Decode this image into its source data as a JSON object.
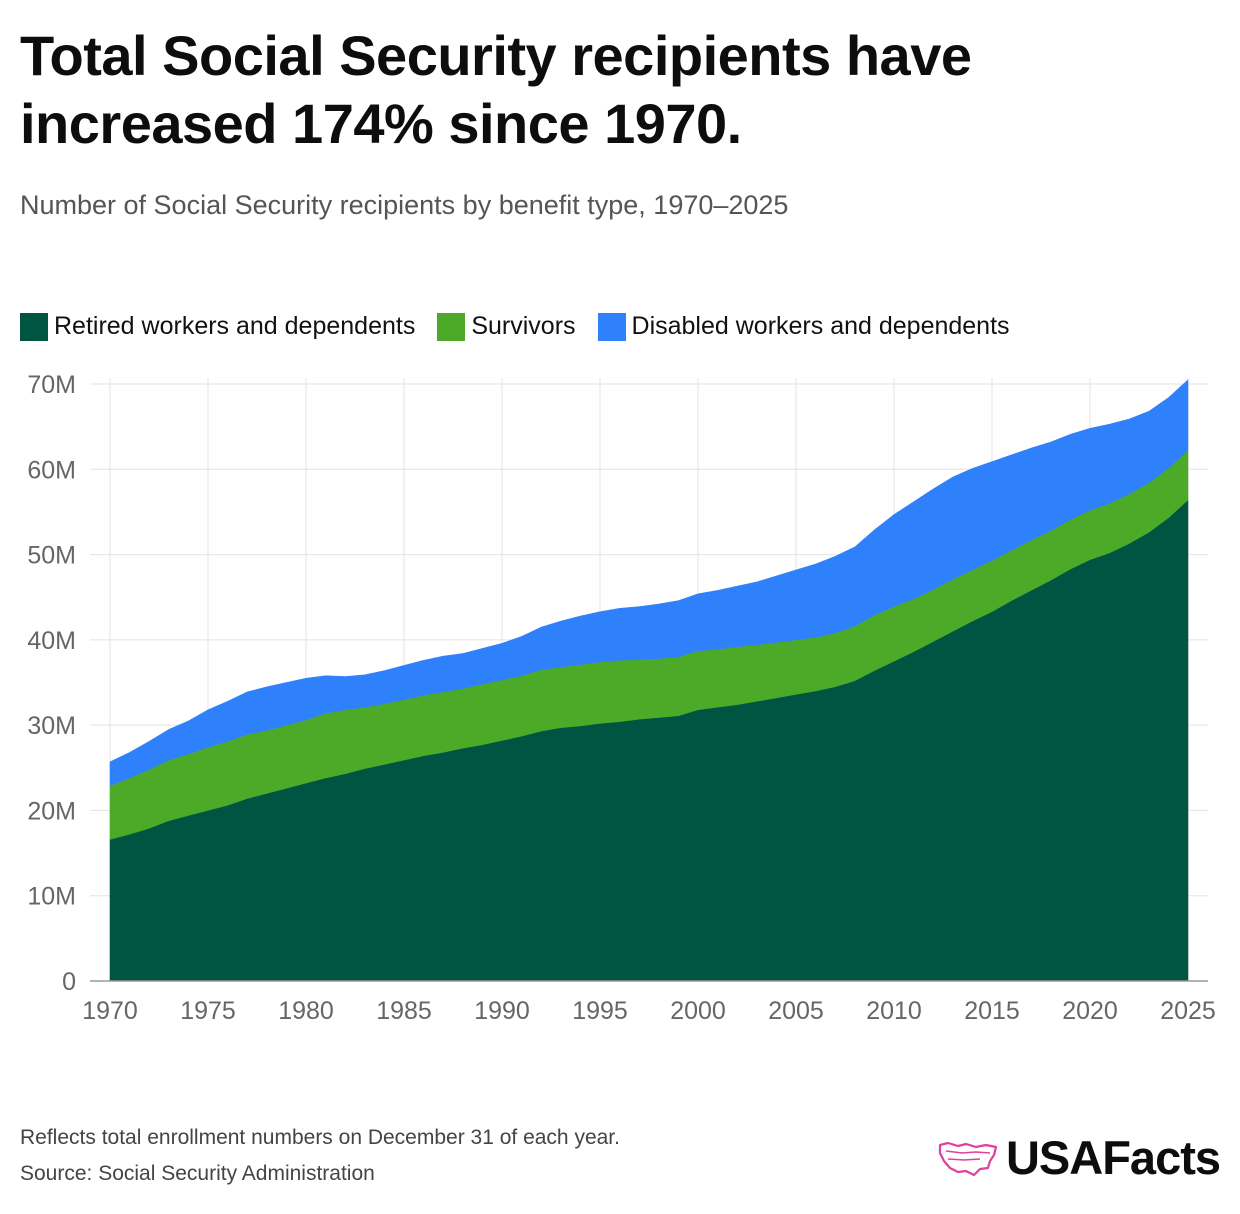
{
  "header": {
    "title": "Total Social Security recipients have increased 174% since 1970.",
    "subtitle": "Number of Social Security recipients by benefit type, 1970–2025"
  },
  "legend": {
    "items": [
      {
        "label": "Retired workers and dependents",
        "color": "#005442"
      },
      {
        "label": "Survivors",
        "color": "#4caa28"
      },
      {
        "label": "Disabled workers and dependents",
        "color": "#2f80fb"
      }
    ]
  },
  "footer": {
    "note": "Reflects total enrollment numbers on December 31 of each year.",
    "source": "Source: Social Security Administration",
    "brand": "USAFacts",
    "logo_icon": "us-map-logo-icon"
  },
  "chart_data": {
    "type": "area",
    "stacked": true,
    "title": "Total Social Security recipients have increased 174% since 1970.",
    "subtitle": "Number of Social Security recipients by benefit type, 1970–2025",
    "xlabel": "",
    "ylabel": "",
    "ylim": [
      0,
      70
    ],
    "yunit": "M",
    "yticks": [
      0,
      10,
      20,
      30,
      40,
      50,
      60,
      70
    ],
    "ytick_labels": [
      "0",
      "10M",
      "20M",
      "30M",
      "40M",
      "50M",
      "60M",
      "70M"
    ],
    "xticks": [
      1970,
      1975,
      1980,
      1985,
      1990,
      1995,
      2000,
      2005,
      2010,
      2015,
      2020,
      2025
    ],
    "grid": true,
    "legend_position": "top-left",
    "x": [
      1970,
      1971,
      1972,
      1973,
      1974,
      1975,
      1976,
      1977,
      1978,
      1979,
      1980,
      1981,
      1982,
      1983,
      1984,
      1985,
      1986,
      1987,
      1988,
      1989,
      1990,
      1991,
      1992,
      1993,
      1994,
      1995,
      1996,
      1997,
      1998,
      1999,
      2000,
      2001,
      2002,
      2003,
      2004,
      2005,
      2006,
      2007,
      2008,
      2009,
      2010,
      2011,
      2012,
      2013,
      2014,
      2015,
      2016,
      2017,
      2018,
      2019,
      2020,
      2021,
      2022,
      2023,
      2024,
      2025
    ],
    "series": [
      {
        "name": "Retired workers and dependents",
        "color": "#005442",
        "values": [
          16.6,
          17.2,
          17.9,
          18.8,
          19.4,
          20.0,
          20.6,
          21.4,
          22.0,
          22.6,
          23.2,
          23.8,
          24.3,
          24.9,
          25.4,
          25.9,
          26.4,
          26.8,
          27.3,
          27.7,
          28.2,
          28.7,
          29.3,
          29.7,
          29.9,
          30.2,
          30.4,
          30.7,
          30.9,
          31.1,
          31.8,
          32.1,
          32.4,
          32.8,
          33.2,
          33.6,
          34.0,
          34.5,
          35.2,
          36.4,
          37.5,
          38.6,
          39.8,
          41.0,
          42.2,
          43.3,
          44.6,
          45.8,
          47.0,
          48.3,
          49.4,
          50.2,
          51.3,
          52.6,
          54.3,
          56.4
        ]
      },
      {
        "name": "Survivors",
        "color": "#4caa28",
        "values": [
          6.3,
          6.6,
          6.9,
          7.1,
          7.2,
          7.4,
          7.5,
          7.5,
          7.4,
          7.4,
          7.4,
          7.6,
          7.5,
          7.2,
          7.1,
          7.1,
          7.1,
          7.1,
          7.0,
          7.1,
          7.1,
          7.1,
          7.2,
          7.1,
          7.2,
          7.2,
          7.2,
          7.0,
          6.9,
          6.9,
          6.9,
          6.8,
          6.8,
          6.6,
          6.5,
          6.4,
          6.3,
          6.3,
          6.4,
          6.5,
          6.4,
          6.2,
          6.1,
          6.1,
          6.0,
          6.0,
          5.9,
          5.9,
          5.8,
          5.8,
          5.8,
          5.8,
          5.8,
          5.8,
          5.8,
          5.8
        ]
      },
      {
        "name": "Disabled workers and dependents",
        "color": "#2f80fb",
        "values": [
          2.8,
          3.0,
          3.3,
          3.6,
          3.9,
          4.4,
          4.7,
          5.0,
          5.1,
          5.0,
          4.9,
          4.4,
          3.9,
          3.8,
          3.9,
          4.0,
          4.1,
          4.2,
          4.1,
          4.2,
          4.3,
          4.6,
          5.0,
          5.4,
          5.7,
          5.9,
          6.1,
          6.2,
          6.4,
          6.6,
          6.7,
          6.9,
          7.1,
          7.4,
          7.8,
          8.2,
          8.6,
          9.0,
          9.3,
          10.0,
          10.8,
          11.4,
          11.8,
          12.0,
          11.9,
          11.6,
          11.2,
          10.8,
          10.4,
          10.0,
          9.6,
          9.3,
          8.8,
          8.4,
          8.3,
          8.3
        ]
      }
    ]
  }
}
